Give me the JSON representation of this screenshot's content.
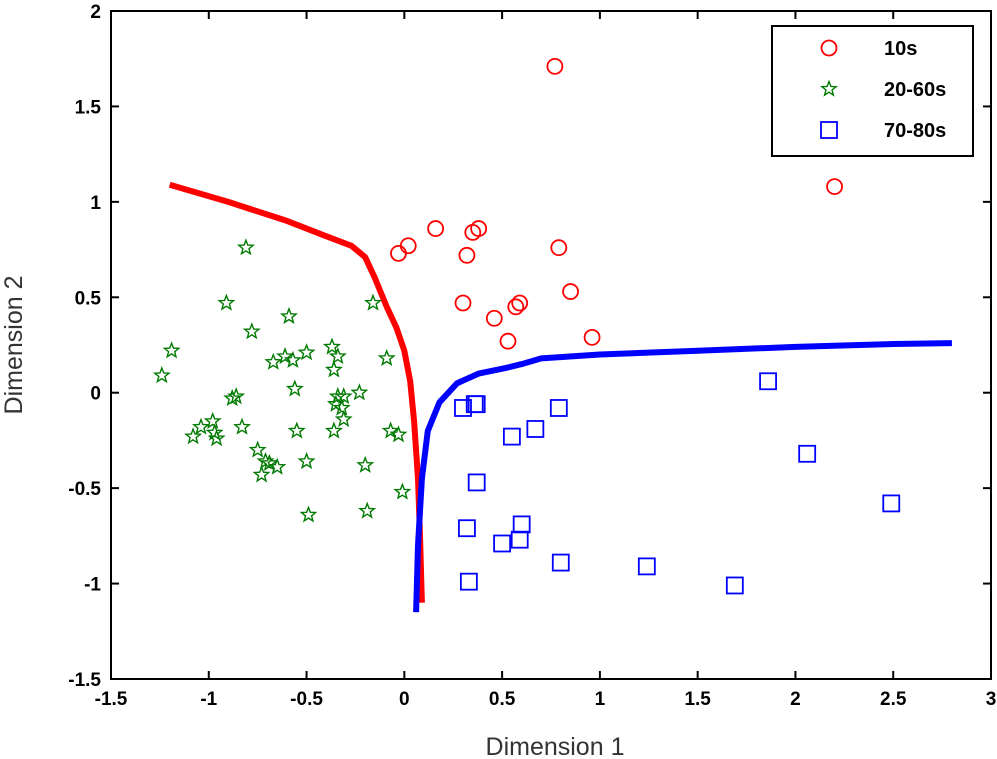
{
  "chart_data": {
    "type": "scatter",
    "title": "",
    "xlabel": "Dimension 1",
    "ylabel": "Dimension 2",
    "xlim": [
      -1.5,
      3
    ],
    "ylim": [
      -1.5,
      2
    ],
    "xticks": [
      "-1.5",
      "-1",
      "-0.5",
      "0",
      "0.5",
      "1",
      "1.5",
      "2",
      "2.5",
      "3"
    ],
    "yticks": [
      "-1.5",
      "-1",
      "-0.5",
      "0",
      "0.5",
      "1",
      "1.5",
      "2"
    ],
    "grid": false,
    "legend_position": "top-right",
    "series": [
      {
        "name": "10s",
        "marker": "circle",
        "color": "#ff0000",
        "points": [
          [
            0.77,
            1.71
          ],
          [
            2.2,
            1.08
          ],
          [
            -0.03,
            0.73
          ],
          [
            0.02,
            0.77
          ],
          [
            0.16,
            0.86
          ],
          [
            0.32,
            0.72
          ],
          [
            0.35,
            0.84
          ],
          [
            0.38,
            0.86
          ],
          [
            0.79,
            0.76
          ],
          [
            0.3,
            0.47
          ],
          [
            0.46,
            0.39
          ],
          [
            0.53,
            0.27
          ],
          [
            0.57,
            0.45
          ],
          [
            0.59,
            0.47
          ],
          [
            0.85,
            0.53
          ],
          [
            0.96,
            0.29
          ]
        ]
      },
      {
        "name": "20-60s",
        "marker": "star",
        "color": "#007a00",
        "points": [
          [
            -0.81,
            0.76
          ],
          [
            -0.91,
            0.47
          ],
          [
            -0.59,
            0.4
          ],
          [
            -0.78,
            0.32
          ],
          [
            -0.16,
            0.47
          ],
          [
            -1.19,
            0.22
          ],
          [
            -1.24,
            0.09
          ],
          [
            -0.67,
            0.16
          ],
          [
            -0.61,
            0.19
          ],
          [
            -0.57,
            0.17
          ],
          [
            -0.5,
            0.21
          ],
          [
            -0.37,
            0.24
          ],
          [
            -0.34,
            0.19
          ],
          [
            -0.36,
            0.12
          ],
          [
            -0.09,
            0.18
          ],
          [
            -0.56,
            0.02
          ],
          [
            -0.88,
            -0.03
          ],
          [
            -0.86,
            -0.02
          ],
          [
            -0.34,
            -0.02
          ],
          [
            -0.31,
            -0.02
          ],
          [
            -0.23,
            0.0
          ],
          [
            -0.35,
            -0.06
          ],
          [
            -0.32,
            -0.08
          ],
          [
            -1.08,
            -0.23
          ],
          [
            -1.04,
            -0.18
          ],
          [
            -0.98,
            -0.15
          ],
          [
            -0.97,
            -0.21
          ],
          [
            -0.96,
            -0.24
          ],
          [
            -0.83,
            -0.18
          ],
          [
            -0.55,
            -0.2
          ],
          [
            -0.36,
            -0.2
          ],
          [
            -0.31,
            -0.14
          ],
          [
            -0.07,
            -0.2
          ],
          [
            -0.03,
            -0.22
          ],
          [
            -0.75,
            -0.3
          ],
          [
            -0.71,
            -0.36
          ],
          [
            -0.73,
            -0.43
          ],
          [
            -0.69,
            -0.37
          ],
          [
            -0.65,
            -0.39
          ],
          [
            -0.5,
            -0.36
          ],
          [
            -0.2,
            -0.38
          ],
          [
            -0.01,
            -0.52
          ],
          [
            -0.49,
            -0.64
          ],
          [
            -0.19,
            -0.62
          ]
        ]
      },
      {
        "name": "70-80s",
        "marker": "square",
        "color": "#0000ff",
        "points": [
          [
            1.86,
            0.06
          ],
          [
            0.3,
            -0.08
          ],
          [
            0.36,
            -0.06
          ],
          [
            0.37,
            -0.06
          ],
          [
            0.79,
            -0.08
          ],
          [
            0.55,
            -0.23
          ],
          [
            0.67,
            -0.19
          ],
          [
            2.06,
            -0.32
          ],
          [
            0.37,
            -0.47
          ],
          [
            2.49,
            -0.58
          ],
          [
            0.32,
            -0.71
          ],
          [
            0.6,
            -0.69
          ],
          [
            0.5,
            -0.79
          ],
          [
            0.59,
            -0.77
          ],
          [
            0.8,
            -0.89
          ],
          [
            1.24,
            -0.91
          ],
          [
            0.33,
            -0.99
          ],
          [
            1.69,
            -1.01
          ]
        ]
      }
    ],
    "curves": [
      {
        "name": "boundary-red",
        "color": "#ff0000",
        "points": [
          [
            -1.2,
            1.09
          ],
          [
            -0.9,
            1.0
          ],
          [
            -0.6,
            0.9
          ],
          [
            -0.4,
            0.82
          ],
          [
            -0.27,
            0.77
          ],
          [
            -0.2,
            0.71
          ],
          [
            -0.15,
            0.6
          ],
          [
            -0.09,
            0.45
          ],
          [
            -0.04,
            0.34
          ],
          [
            0.0,
            0.22
          ],
          [
            0.03,
            0.06
          ],
          [
            0.05,
            -0.15
          ],
          [
            0.07,
            -0.45
          ],
          [
            0.08,
            -0.75
          ],
          [
            0.09,
            -1.1
          ]
        ]
      },
      {
        "name": "boundary-blue",
        "color": "#0000ff",
        "points": [
          [
            0.06,
            -1.15
          ],
          [
            0.07,
            -0.8
          ],
          [
            0.09,
            -0.45
          ],
          [
            0.12,
            -0.2
          ],
          [
            0.18,
            -0.05
          ],
          [
            0.27,
            0.05
          ],
          [
            0.38,
            0.1
          ],
          [
            0.52,
            0.13
          ],
          [
            0.6,
            0.15
          ],
          [
            0.7,
            0.18
          ],
          [
            1.0,
            0.2
          ],
          [
            1.5,
            0.22
          ],
          [
            2.0,
            0.24
          ],
          [
            2.5,
            0.255
          ],
          [
            2.8,
            0.26
          ]
        ]
      }
    ]
  }
}
